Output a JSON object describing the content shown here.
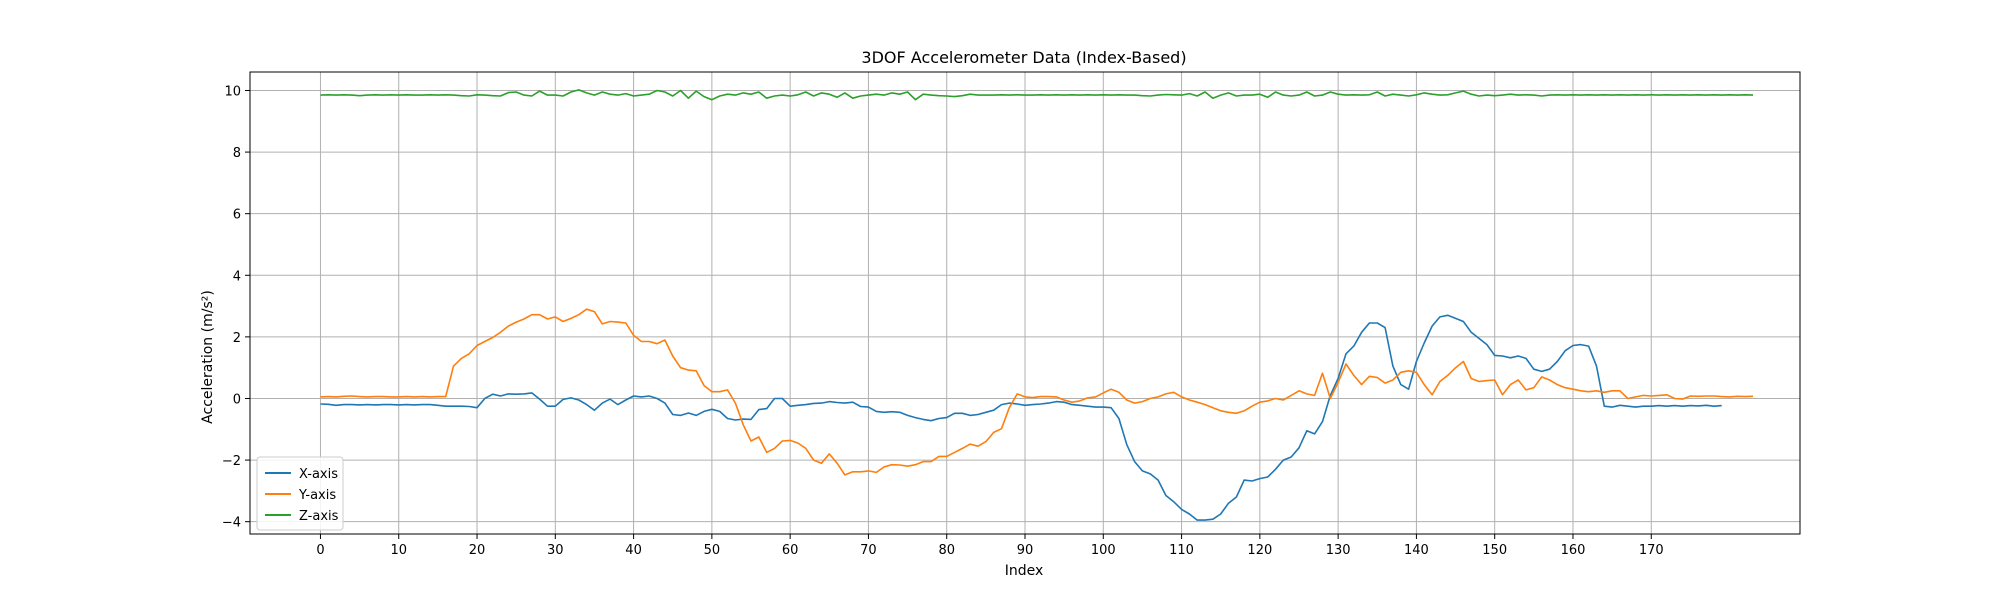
{
  "chart_data": {
    "type": "line",
    "title": "3DOF Accelerometer Data (Index-Based)",
    "xlabel": "Index",
    "ylabel": "Acceleration (m/s²)",
    "xlim": [
      -9,
      189
    ],
    "ylim": [
      -4.4,
      10.6
    ],
    "xticks": [
      0,
      10,
      20,
      30,
      40,
      50,
      60,
      70,
      80,
      90,
      100,
      110,
      120,
      130,
      140,
      150,
      160,
      170
    ],
    "yticks": [
      -4,
      -2,
      0,
      2,
      4,
      6,
      8,
      10
    ],
    "grid": true,
    "legend_position": "lower-left",
    "series": [
      {
        "name": "X-axis",
        "color": "#1f77b4",
        "values": [
          -0.18,
          -0.19,
          -0.22,
          -0.2,
          -0.2,
          -0.21,
          -0.2,
          -0.21,
          -0.2,
          -0.2,
          -0.21,
          -0.2,
          -0.21,
          -0.2,
          -0.2,
          -0.22,
          -0.25,
          -0.25,
          -0.25,
          -0.26,
          -0.3,
          0.0,
          0.14,
          0.08,
          0.15,
          0.14,
          0.15,
          0.18,
          -0.02,
          -0.25,
          -0.25,
          -0.03,
          0.02,
          -0.05,
          -0.2,
          -0.38,
          -0.15,
          -0.02,
          -0.2,
          -0.05,
          0.08,
          0.05,
          0.08,
          0.0,
          -0.15,
          -0.52,
          -0.55,
          -0.47,
          -0.55,
          -0.42,
          -0.35,
          -0.42,
          -0.65,
          -0.7,
          -0.67,
          -0.68,
          -0.36,
          -0.33,
          0.0,
          0.0,
          -0.25,
          -0.22,
          -0.2,
          -0.16,
          -0.15,
          -0.1,
          -0.13,
          -0.15,
          -0.12,
          -0.26,
          -0.28,
          -0.42,
          -0.45,
          -0.43,
          -0.45,
          -0.55,
          -0.62,
          -0.68,
          -0.72,
          -0.65,
          -0.62,
          -0.48,
          -0.48,
          -0.55,
          -0.52,
          -0.45,
          -0.38,
          -0.2,
          -0.15,
          -0.18,
          -0.22,
          -0.2,
          -0.18,
          -0.15,
          -0.1,
          -0.12,
          -0.2,
          -0.22,
          -0.25,
          -0.28,
          -0.28,
          -0.3,
          -0.65,
          -1.5,
          -2.05,
          -2.35,
          -2.45,
          -2.65,
          -3.15,
          -3.35,
          -3.6,
          -3.75,
          -3.95,
          -3.95,
          -3.92,
          -3.75,
          -3.4,
          -3.2,
          -2.65,
          -2.68,
          -2.6,
          -2.55,
          -2.3,
          -2.0,
          -1.9,
          -1.6,
          -1.05,
          -1.15,
          -0.75,
          0.1,
          0.65,
          1.45,
          1.7,
          2.15,
          2.45,
          2.45,
          2.3,
          1.05,
          0.45,
          0.3,
          1.2,
          1.8,
          2.35,
          2.65,
          2.7,
          2.6,
          2.5,
          2.15,
          1.95,
          1.75,
          1.4,
          1.38,
          1.32,
          1.38,
          1.3,
          0.95,
          0.88,
          0.95,
          1.2,
          1.55,
          1.72,
          1.75,
          1.7,
          1.05,
          -0.25,
          -0.28,
          -0.22,
          -0.25,
          -0.28,
          -0.25,
          -0.25,
          -0.23,
          -0.25,
          -0.23,
          -0.25,
          -0.23,
          -0.24,
          -0.22,
          -0.25,
          -0.23
        ]
      },
      {
        "name": "Y-axis",
        "color": "#ff7f0e",
        "values": [
          0.05,
          0.06,
          0.05,
          0.07,
          0.08,
          0.06,
          0.05,
          0.06,
          0.06,
          0.05,
          0.05,
          0.06,
          0.05,
          0.06,
          0.05,
          0.06,
          0.06,
          1.05,
          1.3,
          1.45,
          1.72,
          1.85,
          1.98,
          2.15,
          2.35,
          2.48,
          2.58,
          2.72,
          2.72,
          2.58,
          2.65,
          2.5,
          2.6,
          2.72,
          2.9,
          2.82,
          2.42,
          2.5,
          2.48,
          2.45,
          2.05,
          1.85,
          1.85,
          1.78,
          1.9,
          1.38,
          1.0,
          0.92,
          0.9,
          0.42,
          0.22,
          0.22,
          0.28,
          -0.15,
          -0.85,
          -1.38,
          -1.25,
          -1.75,
          -1.62,
          -1.38,
          -1.36,
          -1.45,
          -1.62,
          -2.0,
          -2.1,
          -1.8,
          -2.1,
          -2.48,
          -2.38,
          -2.38,
          -2.35,
          -2.4,
          -2.22,
          -2.15,
          -2.16,
          -2.2,
          -2.15,
          -2.05,
          -2.05,
          -1.88,
          -1.88,
          -1.75,
          -1.62,
          -1.48,
          -1.55,
          -1.4,
          -1.1,
          -0.98,
          -0.3,
          0.15,
          0.05,
          0.03,
          0.06,
          0.06,
          0.05,
          -0.05,
          -0.12,
          -0.08,
          0.02,
          0.05,
          0.18,
          0.3,
          0.2,
          -0.05,
          -0.15,
          -0.1,
          0.0,
          0.05,
          0.15,
          0.2,
          0.05,
          -0.05,
          -0.12,
          -0.2,
          -0.3,
          -0.4,
          -0.45,
          -0.48,
          -0.4,
          -0.25,
          -0.12,
          -0.08,
          0.0,
          -0.05,
          0.1,
          0.25,
          0.15,
          0.1,
          0.82,
          0.0,
          0.52,
          1.12,
          0.75,
          0.45,
          0.72,
          0.68,
          0.5,
          0.6,
          0.85,
          0.9,
          0.85,
          0.45,
          0.12,
          0.55,
          0.75,
          1.0,
          1.2,
          0.65,
          0.55,
          0.58,
          0.6,
          0.12,
          0.45,
          0.6,
          0.28,
          0.35,
          0.7,
          0.6,
          0.45,
          0.35,
          0.3,
          0.25,
          0.22,
          0.25,
          0.2,
          0.25,
          0.25,
          0.0,
          0.05,
          0.1,
          0.08,
          0.1,
          0.12,
          0.0,
          -0.02,
          0.08,
          0.07,
          0.08,
          0.08,
          0.06,
          0.05,
          0.07,
          0.06,
          0.07
        ]
      },
      {
        "name": "Z-axis",
        "color": "#2ca02c",
        "values": [
          9.85,
          9.86,
          9.85,
          9.86,
          9.85,
          9.83,
          9.85,
          9.86,
          9.85,
          9.86,
          9.85,
          9.86,
          9.85,
          9.85,
          9.86,
          9.85,
          9.86,
          9.85,
          9.83,
          9.82,
          9.86,
          9.85,
          9.83,
          9.82,
          9.93,
          9.95,
          9.85,
          9.82,
          9.98,
          9.85,
          9.85,
          9.82,
          9.95,
          10.02,
          9.92,
          9.85,
          9.95,
          9.88,
          9.85,
          9.9,
          9.82,
          9.85,
          9.88,
          10.0,
          9.95,
          9.82,
          10.0,
          9.75,
          9.98,
          9.8,
          9.7,
          9.82,
          9.88,
          9.85,
          9.92,
          9.88,
          9.95,
          9.75,
          9.82,
          9.85,
          9.82,
          9.86,
          9.95,
          9.82,
          9.92,
          9.88,
          9.78,
          9.92,
          9.75,
          9.82,
          9.85,
          9.88,
          9.85,
          9.92,
          9.88,
          9.95,
          9.7,
          9.88,
          9.85,
          9.83,
          9.82,
          9.8,
          9.83,
          9.88,
          9.85,
          9.85,
          9.85,
          9.86,
          9.85,
          9.86,
          9.85,
          9.85,
          9.86,
          9.85,
          9.86,
          9.85,
          9.86,
          9.85,
          9.86,
          9.85,
          9.86,
          9.85,
          9.86,
          9.85,
          9.85,
          9.83,
          9.82,
          9.85,
          9.87,
          9.86,
          9.85,
          9.9,
          9.82,
          9.95,
          9.75,
          9.85,
          9.92,
          9.82,
          9.85,
          9.85,
          9.88,
          9.78,
          9.95,
          9.85,
          9.82,
          9.85,
          9.95,
          9.82,
          9.85,
          9.95,
          9.88,
          9.85,
          9.86,
          9.85,
          9.86,
          9.95,
          9.82,
          9.88,
          9.85,
          9.82,
          9.86,
          9.92,
          9.88,
          9.85,
          9.86,
          9.92,
          9.98,
          9.88,
          9.82,
          9.85,
          9.83,
          9.85,
          9.88,
          9.85,
          9.86,
          9.85,
          9.82,
          9.85,
          9.86,
          9.85,
          9.86,
          9.85,
          9.86,
          9.85,
          9.86,
          9.85,
          9.86,
          9.85,
          9.86,
          9.85,
          9.86,
          9.85,
          9.86,
          9.85,
          9.86,
          9.85,
          9.86,
          9.85,
          9.86,
          9.85,
          9.86,
          9.85,
          9.86,
          9.85
        ]
      }
    ]
  }
}
